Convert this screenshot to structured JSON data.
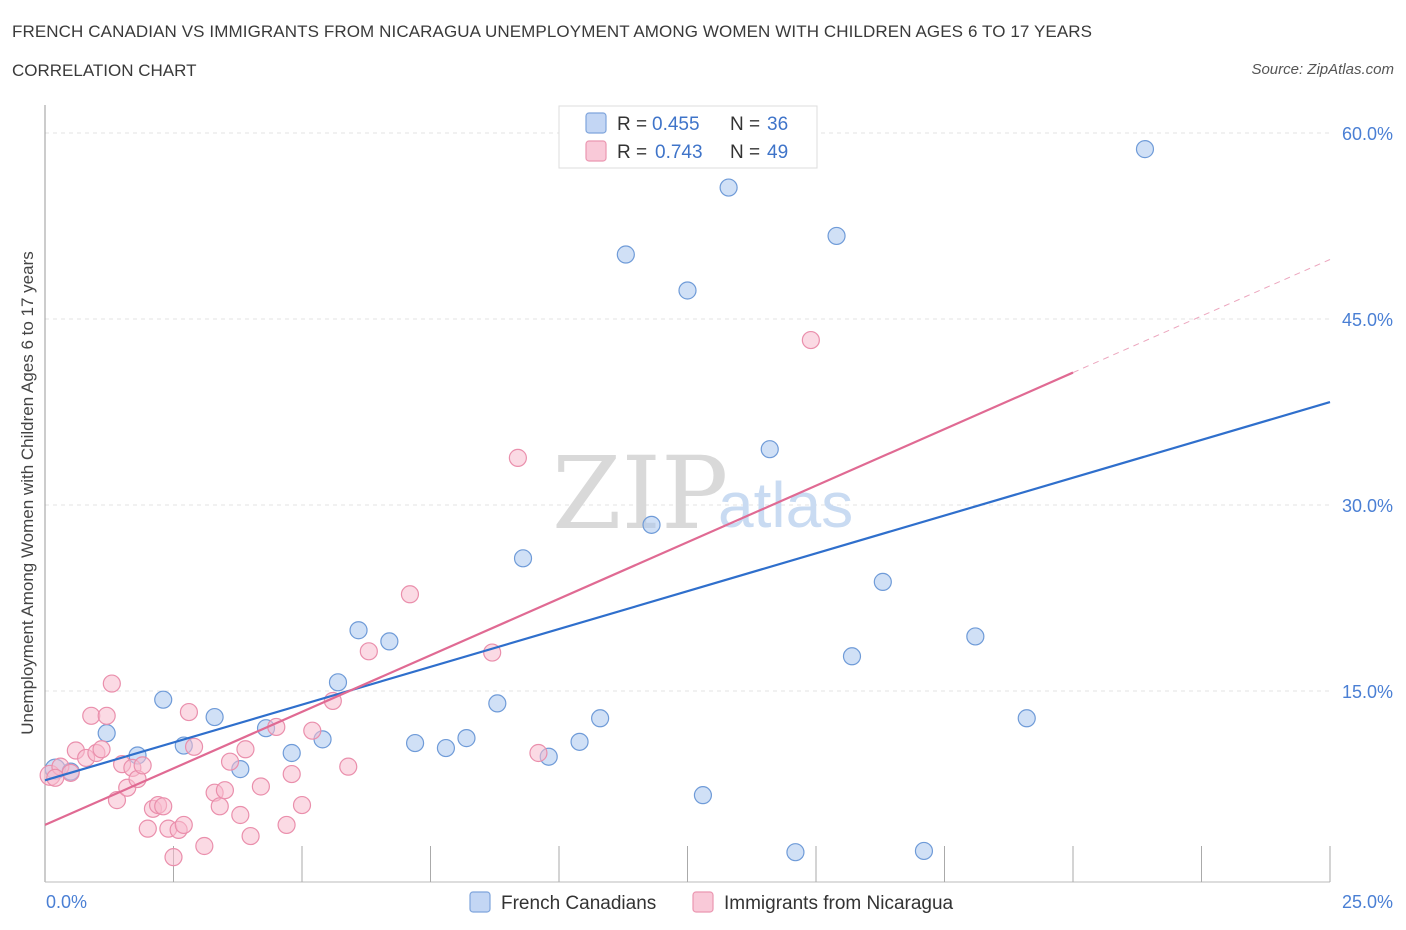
{
  "header": {
    "title": "FRENCH CANADIAN VS IMMIGRANTS FROM NICARAGUA UNEMPLOYMENT AMONG WOMEN WITH CHILDREN AGES 6 TO 17 YEARS",
    "subtitle": "CORRELATION CHART",
    "source": "Source: ZipAtlas.com"
  },
  "watermark": {
    "zip": "ZIP",
    "atlas": "atlas"
  },
  "legend": {
    "rows": [
      {
        "r_label": "R = ",
        "r_value": "0.455",
        "n_label": "N = ",
        "n_value": "36"
      },
      {
        "r_label": "R = ",
        "r_value": "0.743",
        "n_label": "N = ",
        "n_value": "49"
      }
    ]
  },
  "chart_data": {
    "type": "scatter",
    "title": "FRENCH CANADIAN VS IMMIGRANTS FROM NICARAGUA UNEMPLOYMENT AMONG WOMEN WITH CHILDREN AGES 6 TO 17 YEARS",
    "xlabel": "",
    "ylabel": "Unemployment Among Women with Children Ages 6 to 17 years",
    "xlim": [
      0,
      25
    ],
    "ylim": [
      0,
      60
    ],
    "x_tick_labels": [
      {
        "value": 0,
        "label": "0.0%"
      },
      {
        "value": 25,
        "label": "25.0%"
      }
    ],
    "y_tick_labels": [
      {
        "value": 15,
        "label": "15.0%"
      },
      {
        "value": 30,
        "label": "30.0%"
      },
      {
        "value": 45,
        "label": "45.0%"
      },
      {
        "value": 60,
        "label": "60.0%"
      }
    ],
    "x_minor_ticks": [
      2.5,
      5,
      7.5,
      10,
      12.5,
      15,
      17.5,
      20,
      22.5,
      25
    ],
    "grid": true,
    "series": [
      {
        "name": "French Canadians",
        "color": "#a9c6ef",
        "stroke": "#6f9bd8",
        "trend_color": "#2f6fcc",
        "trend": {
          "x0": 0,
          "y0": 7.8,
          "x1": 25,
          "y1": 38.3,
          "dashed_from": null
        },
        "points": [
          [
            0.2,
            8.7
          ],
          [
            0.5,
            8.5
          ],
          [
            1.2,
            11.6
          ],
          [
            1.8,
            9.8
          ],
          [
            2.3,
            14.3
          ],
          [
            2.7,
            10.6
          ],
          [
            3.3,
            12.9
          ],
          [
            3.8,
            8.7
          ],
          [
            4.3,
            12.0
          ],
          [
            4.8,
            10.0
          ],
          [
            5.4,
            11.1
          ],
          [
            5.7,
            15.7
          ],
          [
            6.1,
            19.9
          ],
          [
            6.7,
            19.0
          ],
          [
            7.2,
            10.8
          ],
          [
            7.8,
            10.4
          ],
          [
            8.2,
            11.2
          ],
          [
            8.8,
            14.0
          ],
          [
            9.3,
            25.7
          ],
          [
            9.8,
            9.7
          ],
          [
            10.4,
            10.9
          ],
          [
            10.8,
            12.8
          ],
          [
            11.3,
            50.2
          ],
          [
            11.8,
            28.4
          ],
          [
            12.5,
            47.3
          ],
          [
            12.8,
            6.6
          ],
          [
            13.3,
            55.6
          ],
          [
            14.1,
            34.5
          ],
          [
            14.6,
            2.0
          ],
          [
            15.4,
            51.7
          ],
          [
            15.7,
            17.8
          ],
          [
            16.3,
            23.8
          ],
          [
            17.1,
            2.1
          ],
          [
            18.1,
            19.4
          ],
          [
            19.1,
            12.8
          ],
          [
            21.4,
            58.7
          ]
        ]
      },
      {
        "name": "Immigrants from Nicaragua",
        "color": "#f7bccd",
        "stroke": "#ea8fac",
        "trend_color": "#e06a93",
        "trend": {
          "x0": 0,
          "y0": 4.2,
          "x1": 25,
          "y1": 49.8,
          "dashed_from": 20
        },
        "points": [
          [
            0.1,
            8.2
          ],
          [
            0.3,
            8.9
          ],
          [
            0.5,
            8.4
          ],
          [
            0.6,
            10.2
          ],
          [
            0.8,
            9.6
          ],
          [
            0.9,
            13.0
          ],
          [
            1.0,
            10.0
          ],
          [
            1.1,
            10.3
          ],
          [
            1.2,
            13.0
          ],
          [
            1.3,
            15.6
          ],
          [
            1.4,
            6.2
          ],
          [
            1.5,
            9.1
          ],
          [
            1.6,
            7.2
          ],
          [
            1.7,
            8.8
          ],
          [
            1.8,
            7.9
          ],
          [
            1.9,
            9.0
          ],
          [
            2.0,
            3.9
          ],
          [
            2.1,
            5.5
          ],
          [
            2.2,
            5.8
          ],
          [
            2.3,
            5.7
          ],
          [
            2.4,
            3.9
          ],
          [
            2.5,
            1.6
          ],
          [
            2.6,
            3.8
          ],
          [
            2.7,
            4.2
          ],
          [
            2.8,
            13.3
          ],
          [
            2.9,
            10.5
          ],
          [
            3.1,
            2.5
          ],
          [
            3.3,
            6.8
          ],
          [
            3.4,
            5.7
          ],
          [
            3.5,
            7.0
          ],
          [
            3.6,
            9.3
          ],
          [
            3.8,
            5.0
          ],
          [
            3.9,
            10.3
          ],
          [
            4.0,
            3.3
          ],
          [
            4.2,
            7.3
          ],
          [
            4.5,
            12.1
          ],
          [
            4.7,
            4.2
          ],
          [
            4.8,
            8.3
          ],
          [
            5.0,
            5.8
          ],
          [
            5.2,
            11.8
          ],
          [
            5.6,
            14.2
          ],
          [
            5.9,
            8.9
          ],
          [
            6.3,
            18.2
          ],
          [
            7.1,
            22.8
          ],
          [
            8.7,
            18.1
          ],
          [
            9.2,
            33.8
          ],
          [
            9.6,
            10.0
          ],
          [
            14.9,
            43.3
          ],
          [
            0.2,
            8.0
          ]
        ]
      }
    ]
  }
}
